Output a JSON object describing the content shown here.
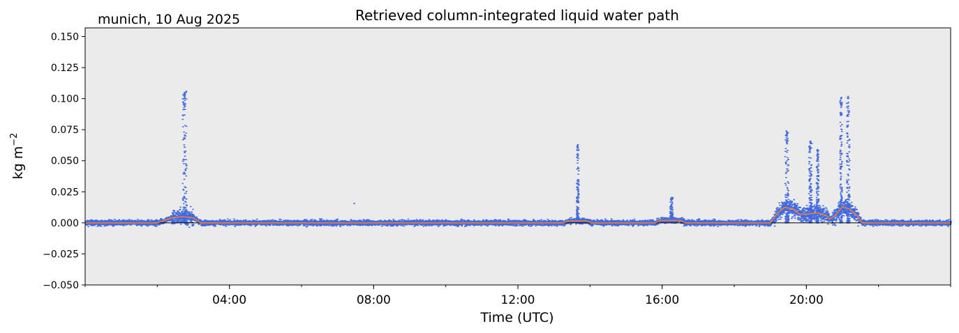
{
  "chart_data": {
    "type": "scatter",
    "title": "Retrieved column-integrated liquid water path",
    "subtitle": "munich, 10 Aug 2025",
    "xlabel": "Time (UTC)",
    "ylabel": "kg m",
    "ylabel_exponent": "−2",
    "xlim_hours": [
      0,
      24
    ],
    "ylim": [
      -0.05,
      0.157
    ],
    "x_ticks": [
      {
        "hour": 4,
        "label": "04:00"
      },
      {
        "hour": 8,
        "label": "08:00"
      },
      {
        "hour": 12,
        "label": "12:00"
      },
      {
        "hour": 16,
        "label": "16:00"
      },
      {
        "hour": 20,
        "label": "20:00"
      }
    ],
    "y_ticks": [
      {
        "value": 0.15,
        "label": "0.150"
      },
      {
        "value": 0.125,
        "label": "0.125"
      },
      {
        "value": 0.1,
        "label": "0.100"
      },
      {
        "value": 0.075,
        "label": "0.075"
      },
      {
        "value": 0.05,
        "label": "0.050"
      },
      {
        "value": 0.025,
        "label": "0.025"
      },
      {
        "value": 0.0,
        "label": "0.000"
      },
      {
        "value": -0.025,
        "label": "−0.025"
      },
      {
        "value": -0.05,
        "label": "−0.050"
      }
    ],
    "zero_line": true,
    "background_color": "#ebebeb",
    "scatter_color": "#4169e1",
    "smoothed_line_color": "#f08030",
    "spikes": [
      {
        "hour": 2.75,
        "peak": 0.107,
        "width_h": 0.12
      },
      {
        "hour": 13.65,
        "peak": 0.063,
        "width_h": 0.06
      },
      {
        "hour": 16.25,
        "peak": 0.021,
        "width_h": 0.08
      },
      {
        "hour": 19.45,
        "peak": 0.074,
        "width_h": 0.1
      },
      {
        "hour": 20.1,
        "peak": 0.066,
        "width_h": 0.08
      },
      {
        "hour": 20.3,
        "peak": 0.059,
        "width_h": 0.06
      },
      {
        "hour": 20.95,
        "peak": 0.101,
        "width_h": 0.06
      },
      {
        "hour": 21.15,
        "peak": 0.102,
        "width_h": 0.08
      }
    ],
    "isolated_points": [
      {
        "hour": 7.45,
        "value": 0.0155
      }
    ],
    "smoothed_series": [
      {
        "hour": 0.0,
        "value": 0.0
      },
      {
        "hour": 2.0,
        "value": 0.0
      },
      {
        "hour": 2.4,
        "value": 0.004
      },
      {
        "hour": 2.7,
        "value": 0.005
      },
      {
        "hour": 3.0,
        "value": 0.004
      },
      {
        "hour": 3.2,
        "value": 0.0
      },
      {
        "hour": 13.25,
        "value": 0.0
      },
      {
        "hour": 13.4,
        "value": 0.0015
      },
      {
        "hour": 13.9,
        "value": 0.0015
      },
      {
        "hour": 14.05,
        "value": 0.0
      },
      {
        "hour": 15.8,
        "value": 0.0
      },
      {
        "hour": 15.95,
        "value": 0.002
      },
      {
        "hour": 16.5,
        "value": 0.002
      },
      {
        "hour": 16.65,
        "value": 0.0
      },
      {
        "hour": 19.0,
        "value": 0.0
      },
      {
        "hour": 19.2,
        "value": 0.008
      },
      {
        "hour": 19.4,
        "value": 0.0125
      },
      {
        "hour": 19.65,
        "value": 0.011
      },
      {
        "hour": 19.8,
        "value": 0.007
      },
      {
        "hour": 20.0,
        "value": 0.007
      },
      {
        "hour": 20.3,
        "value": 0.008
      },
      {
        "hour": 20.55,
        "value": 0.006
      },
      {
        "hour": 20.65,
        "value": 0.003
      },
      {
        "hour": 20.8,
        "value": 0.006
      },
      {
        "hour": 21.0,
        "value": 0.013
      },
      {
        "hour": 21.2,
        "value": 0.011
      },
      {
        "hour": 21.4,
        "value": 0.006
      },
      {
        "hour": 21.55,
        "value": 0.0
      },
      {
        "hour": 24.0,
        "value": 0.0
      }
    ]
  }
}
